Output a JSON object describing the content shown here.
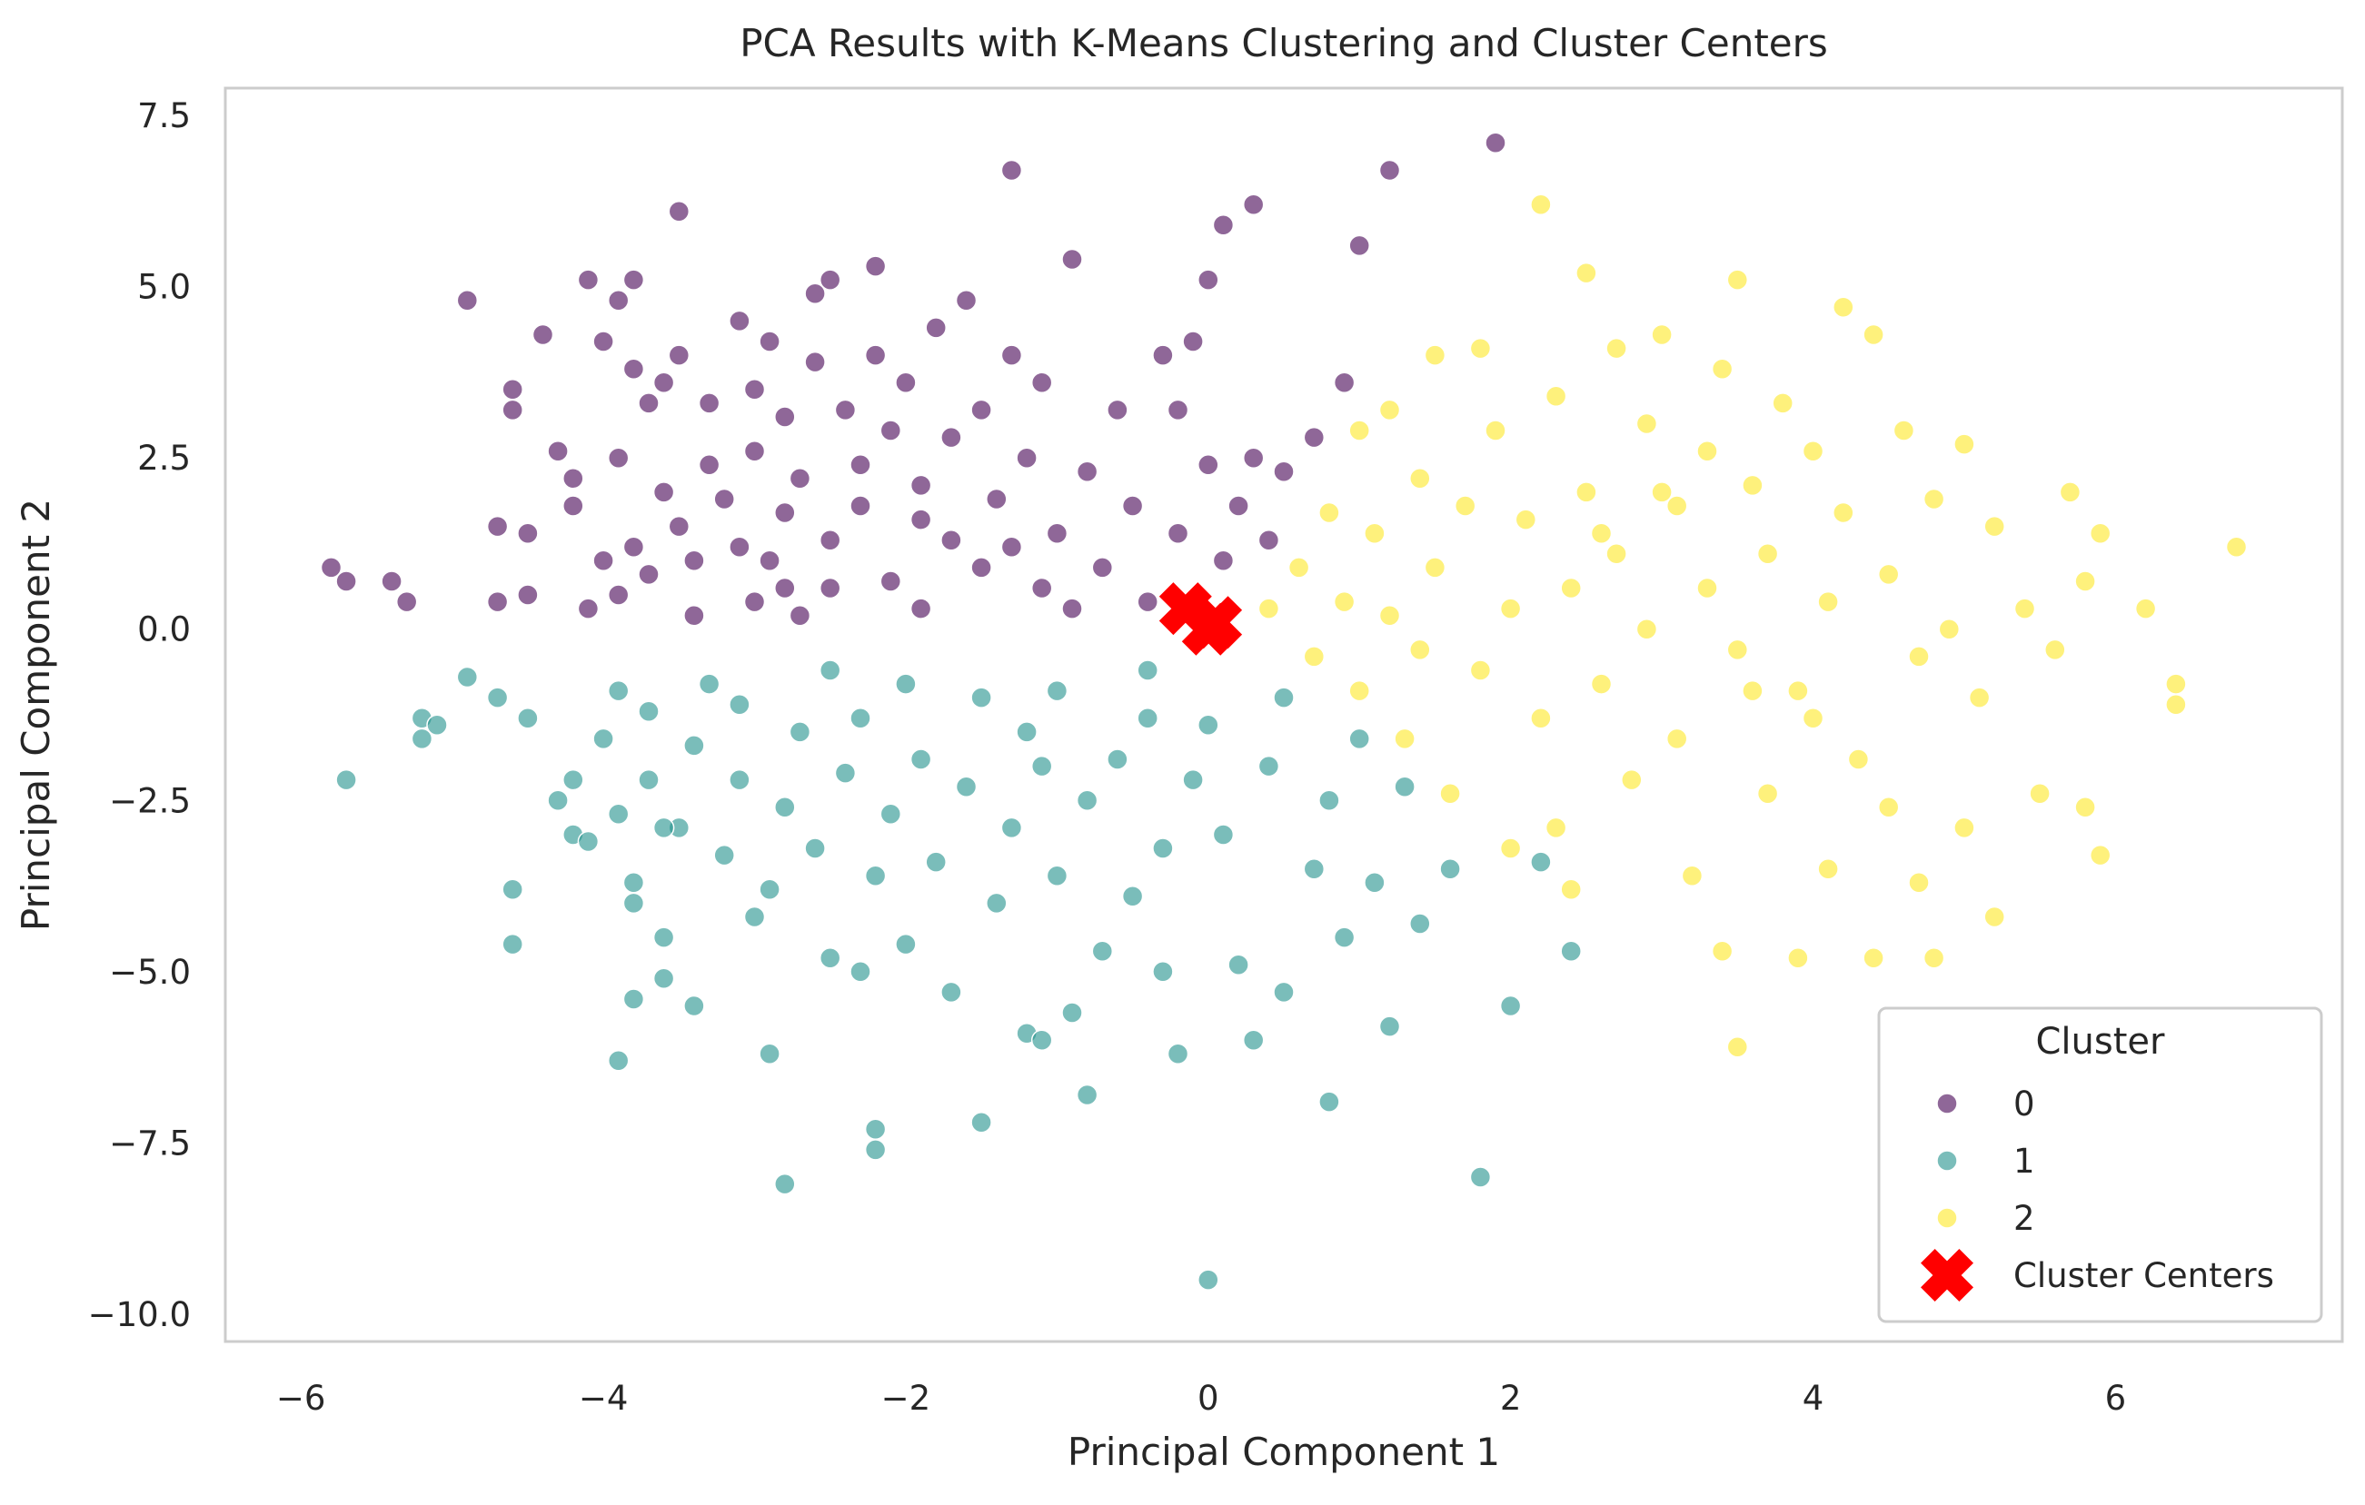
{
  "chart_data": {
    "type": "scatter",
    "title": "PCA Results with K-Means Clustering and Cluster Centers",
    "xlabel": "Principal Component 1",
    "ylabel": "Principal Component 2",
    "xlim": [
      -6.5,
      7.5
    ],
    "ylim": [
      -10.4,
      7.9
    ],
    "xticks": [
      -6,
      -4,
      -2,
      0,
      2,
      4,
      6
    ],
    "xtick_labels": [
      "−6",
      "−4",
      "−2",
      "0",
      "2",
      "4",
      "6"
    ],
    "yticks": [
      -10.0,
      -7.5,
      -5.0,
      -2.5,
      0.0,
      2.5,
      5.0,
      7.5
    ],
    "ytick_labels": [
      "−10.0",
      "−7.5",
      "−5.0",
      "−2.5",
      "0.0",
      "2.5",
      "5.0",
      "7.5"
    ],
    "grid": false,
    "legend": {
      "title": "Cluster",
      "position": "lower-right",
      "entries": [
        "0",
        "1",
        "2",
        "Cluster Centers"
      ]
    },
    "colors": {
      "0": "#440154",
      "1": "#21918c",
      "2": "#fde725",
      "centers": "#ff0000"
    },
    "series": [
      {
        "name": "0",
        "points": [
          [
            -5.8,
            0.9
          ],
          [
            -5.7,
            0.7
          ],
          [
            -5.4,
            0.7
          ],
          [
            -5.3,
            0.4
          ],
          [
            -4.9,
            4.8
          ],
          [
            -4.7,
            1.5
          ],
          [
            -4.7,
            0.4
          ],
          [
            -4.6,
            3.5
          ],
          [
            -4.6,
            3.2
          ],
          [
            -4.5,
            1.4
          ],
          [
            -4.5,
            0.5
          ],
          [
            -4.4,
            4.3
          ],
          [
            -4.3,
            2.6
          ],
          [
            -4.2,
            2.2
          ],
          [
            -4.2,
            1.8
          ],
          [
            -4.1,
            5.1
          ],
          [
            -4.1,
            0.3
          ],
          [
            -4.0,
            4.2
          ],
          [
            -4.0,
            1.0
          ],
          [
            -3.9,
            4.8
          ],
          [
            -3.9,
            2.5
          ],
          [
            -3.9,
            0.5
          ],
          [
            -3.8,
            5.1
          ],
          [
            -3.8,
            3.8
          ],
          [
            -3.8,
            1.2
          ],
          [
            -3.7,
            3.3
          ],
          [
            -3.7,
            0.8
          ],
          [
            -3.6,
            3.6
          ],
          [
            -3.6,
            2.0
          ],
          [
            -3.5,
            6.1
          ],
          [
            -3.5,
            4.0
          ],
          [
            -3.5,
            1.5
          ],
          [
            -3.4,
            0.2
          ],
          [
            -3.3,
            3.3
          ],
          [
            -3.3,
            2.4
          ],
          [
            -3.2,
            1.9
          ],
          [
            -3.1,
            4.5
          ],
          [
            -3.1,
            1.2
          ],
          [
            -3.0,
            3.5
          ],
          [
            -3.0,
            2.6
          ],
          [
            -3.0,
            0.4
          ],
          [
            -2.9,
            4.2
          ],
          [
            -2.9,
            1.0
          ],
          [
            -2.8,
            3.1
          ],
          [
            -2.8,
            1.7
          ],
          [
            -2.7,
            2.2
          ],
          [
            -2.7,
            0.2
          ],
          [
            -2.6,
            3.9
          ],
          [
            -2.6,
            4.9
          ],
          [
            -2.5,
            1.3
          ],
          [
            -2.5,
            0.6
          ],
          [
            -2.4,
            3.2
          ],
          [
            -2.3,
            2.4
          ],
          [
            -2.3,
            1.8
          ],
          [
            -2.2,
            5.3
          ],
          [
            -2.2,
            4.0
          ],
          [
            -2.1,
            2.9
          ],
          [
            -2.1,
            0.7
          ],
          [
            -2.0,
            3.6
          ],
          [
            -1.9,
            2.1
          ],
          [
            -1.9,
            0.3
          ],
          [
            -1.8,
            4.4
          ],
          [
            -1.7,
            2.8
          ],
          [
            -1.7,
            1.3
          ],
          [
            -1.6,
            4.8
          ],
          [
            -1.5,
            3.2
          ],
          [
            -1.5,
            0.9
          ],
          [
            -1.4,
            1.9
          ],
          [
            -1.3,
            6.7
          ],
          [
            -1.3,
            4.0
          ],
          [
            -1.2,
            2.5
          ],
          [
            -1.1,
            0.6
          ],
          [
            -1.1,
            3.6
          ],
          [
            -1.0,
            1.4
          ],
          [
            -0.9,
            5.4
          ],
          [
            -0.8,
            2.3
          ],
          [
            -0.7,
            0.9
          ],
          [
            -0.6,
            3.2
          ],
          [
            -0.5,
            1.8
          ],
          [
            -0.4,
            0.4
          ],
          [
            -0.3,
            4.0
          ],
          [
            -0.2,
            3.2
          ],
          [
            -0.2,
            1.4
          ],
          [
            -0.1,
            4.2
          ],
          [
            0.0,
            5.1
          ],
          [
            0.0,
            2.4
          ],
          [
            0.1,
            5.9
          ],
          [
            0.1,
            1.0
          ],
          [
            0.2,
            1.8
          ],
          [
            0.3,
            2.5
          ],
          [
            0.3,
            6.2
          ],
          [
            0.4,
            1.3
          ],
          [
            0.5,
            2.3
          ],
          [
            0.7,
            2.8
          ],
          [
            0.9,
            3.6
          ],
          [
            1.0,
            5.6
          ],
          [
            1.2,
            6.7
          ],
          [
            1.9,
            7.1
          ],
          [
            -2.5,
            5.1
          ],
          [
            -1.9,
            1.6
          ],
          [
            -3.4,
            1.0
          ],
          [
            -2.8,
            0.6
          ],
          [
            -0.9,
            0.3
          ],
          [
            -1.3,
            1.2
          ]
        ]
      },
      {
        "name": "1",
        "points": [
          [
            -5.7,
            -2.2
          ],
          [
            -5.2,
            -1.3
          ],
          [
            -5.2,
            -1.6
          ],
          [
            -5.1,
            -1.4
          ],
          [
            -4.9,
            -0.7
          ],
          [
            -4.7,
            -1.0
          ],
          [
            -4.6,
            -3.8
          ],
          [
            -4.6,
            -4.6
          ],
          [
            -4.5,
            -1.3
          ],
          [
            -4.3,
            -2.5
          ],
          [
            -4.2,
            -3.0
          ],
          [
            -4.2,
            -2.2
          ],
          [
            -4.1,
            -3.1
          ],
          [
            -4.0,
            -1.6
          ],
          [
            -3.9,
            -6.3
          ],
          [
            -3.9,
            -2.7
          ],
          [
            -3.9,
            -0.9
          ],
          [
            -3.8,
            -3.7
          ],
          [
            -3.8,
            -5.4
          ],
          [
            -3.8,
            -4.0
          ],
          [
            -3.7,
            -2.2
          ],
          [
            -3.7,
            -1.2
          ],
          [
            -3.6,
            -5.1
          ],
          [
            -3.6,
            -4.5
          ],
          [
            -3.5,
            -2.9
          ],
          [
            -3.4,
            -5.5
          ],
          [
            -3.4,
            -1.7
          ],
          [
            -3.3,
            -0.8
          ],
          [
            -3.2,
            -3.3
          ],
          [
            -3.1,
            -2.2
          ],
          [
            -3.1,
            -1.1
          ],
          [
            -3.0,
            -4.2
          ],
          [
            -2.9,
            -6.2
          ],
          [
            -2.8,
            -2.6
          ],
          [
            -2.8,
            -8.1
          ],
          [
            -2.7,
            -1.5
          ],
          [
            -2.6,
            -3.2
          ],
          [
            -2.5,
            -0.6
          ],
          [
            -2.5,
            -4.8
          ],
          [
            -2.4,
            -2.1
          ],
          [
            -2.3,
            -5.0
          ],
          [
            -2.3,
            -1.3
          ],
          [
            -2.2,
            -3.6
          ],
          [
            -2.2,
            -7.6
          ],
          [
            -2.2,
            -7.3
          ],
          [
            -2.1,
            -2.7
          ],
          [
            -2.0,
            -0.8
          ],
          [
            -2.0,
            -4.6
          ],
          [
            -1.9,
            -1.9
          ],
          [
            -1.8,
            -3.4
          ],
          [
            -1.7,
            -5.3
          ],
          [
            -1.6,
            -2.3
          ],
          [
            -1.5,
            -1.0
          ],
          [
            -1.5,
            -7.2
          ],
          [
            -1.4,
            -4.0
          ],
          [
            -1.3,
            -2.9
          ],
          [
            -1.2,
            -5.9
          ],
          [
            -1.2,
            -1.5
          ],
          [
            -1.1,
            -6.0
          ],
          [
            -1.0,
            -3.6
          ],
          [
            -1.0,
            -0.9
          ],
          [
            -0.9,
            -5.6
          ],
          [
            -0.8,
            -2.5
          ],
          [
            -0.8,
            -6.8
          ],
          [
            -0.7,
            -4.7
          ],
          [
            -0.6,
            -1.9
          ],
          [
            -0.5,
            -3.9
          ],
          [
            -0.4,
            -0.6
          ],
          [
            -0.3,
            -5.0
          ],
          [
            -0.3,
            -3.2
          ],
          [
            -0.2,
            -6.2
          ],
          [
            -0.1,
            -2.2
          ],
          [
            0.0,
            -9.5
          ],
          [
            0.0,
            -1.4
          ],
          [
            0.1,
            -3.0
          ],
          [
            0.2,
            -4.9
          ],
          [
            0.3,
            -6.0
          ],
          [
            0.4,
            -2.0
          ],
          [
            0.5,
            -5.3
          ],
          [
            0.5,
            -1.0
          ],
          [
            0.7,
            -3.5
          ],
          [
            0.8,
            -6.9
          ],
          [
            0.8,
            -2.5
          ],
          [
            0.9,
            -4.5
          ],
          [
            1.0,
            -1.6
          ],
          [
            1.1,
            -3.7
          ],
          [
            1.2,
            -5.8
          ],
          [
            1.3,
            -2.3
          ],
          [
            1.4,
            -4.3
          ],
          [
            1.6,
            -3.5
          ],
          [
            1.8,
            -8.0
          ],
          [
            2.0,
            -5.5
          ],
          [
            2.2,
            -3.4
          ],
          [
            2.4,
            -4.7
          ],
          [
            -3.6,
            -2.9
          ],
          [
            -2.9,
            -3.8
          ],
          [
            -1.1,
            -2.0
          ],
          [
            -0.4,
            -1.3
          ]
        ]
      },
      {
        "name": "2",
        "points": [
          [
            0.4,
            0.3
          ],
          [
            0.6,
            0.9
          ],
          [
            0.7,
            -0.4
          ],
          [
            0.8,
            1.7
          ],
          [
            0.9,
            0.4
          ],
          [
            1.0,
            2.9
          ],
          [
            1.0,
            -0.9
          ],
          [
            1.1,
            1.4
          ],
          [
            1.2,
            3.2
          ],
          [
            1.2,
            0.2
          ],
          [
            1.3,
            -1.6
          ],
          [
            1.4,
            2.2
          ],
          [
            1.5,
            4.0
          ],
          [
            1.5,
            0.9
          ],
          [
            1.6,
            -2.4
          ],
          [
            1.7,
            1.8
          ],
          [
            1.8,
            4.1
          ],
          [
            1.8,
            -0.6
          ],
          [
            1.9,
            2.9
          ],
          [
            2.0,
            0.3
          ],
          [
            2.0,
            -3.2
          ],
          [
            2.1,
            1.6
          ],
          [
            2.2,
            6.2
          ],
          [
            2.2,
            -1.3
          ],
          [
            2.3,
            3.4
          ],
          [
            2.4,
            0.6
          ],
          [
            2.4,
            -3.8
          ],
          [
            2.5,
            5.2
          ],
          [
            2.5,
            2.0
          ],
          [
            2.6,
            -0.8
          ],
          [
            2.7,
            4.1
          ],
          [
            2.7,
            1.1
          ],
          [
            2.8,
            -2.2
          ],
          [
            2.9,
            3.0
          ],
          [
            2.9,
            0.0
          ],
          [
            3.0,
            4.3
          ],
          [
            3.1,
            -1.6
          ],
          [
            3.1,
            1.8
          ],
          [
            3.2,
            -3.6
          ],
          [
            3.3,
            2.6
          ],
          [
            3.3,
            0.6
          ],
          [
            3.4,
            -4.7
          ],
          [
            3.4,
            3.8
          ],
          [
            3.5,
            5.1
          ],
          [
            3.5,
            -6.1
          ],
          [
            3.5,
            -0.3
          ],
          [
            3.6,
            2.1
          ],
          [
            3.7,
            -2.4
          ],
          [
            3.7,
            1.1
          ],
          [
            3.8,
            3.3
          ],
          [
            3.9,
            -4.8
          ],
          [
            3.9,
            -0.9
          ],
          [
            4.0,
            2.6
          ],
          [
            4.1,
            0.4
          ],
          [
            4.1,
            -3.5
          ],
          [
            4.2,
            4.7
          ],
          [
            4.2,
            1.7
          ],
          [
            4.3,
            -1.9
          ],
          [
            4.4,
            4.3
          ],
          [
            4.4,
            -4.8
          ],
          [
            4.5,
            0.8
          ],
          [
            4.5,
            -2.6
          ],
          [
            4.6,
            2.9
          ],
          [
            4.7,
            -0.4
          ],
          [
            4.7,
            -3.7
          ],
          [
            4.8,
            1.9
          ],
          [
            4.8,
            -4.8
          ],
          [
            4.9,
            0.0
          ],
          [
            5.0,
            -2.9
          ],
          [
            5.0,
            2.7
          ],
          [
            5.1,
            -1.0
          ],
          [
            5.2,
            1.5
          ],
          [
            5.2,
            -4.2
          ],
          [
            5.4,
            0.3
          ],
          [
            5.5,
            -2.4
          ],
          [
            5.6,
            -0.3
          ],
          [
            5.7,
            2.0
          ],
          [
            5.8,
            -2.6
          ],
          [
            5.8,
            0.7
          ],
          [
            5.9,
            1.4
          ],
          [
            5.9,
            -3.3
          ],
          [
            6.2,
            0.3
          ],
          [
            6.4,
            -0.8
          ],
          [
            6.4,
            -1.1
          ],
          [
            6.8,
            1.2
          ],
          [
            2.6,
            1.4
          ],
          [
            3.6,
            -0.9
          ],
          [
            4.0,
            -1.3
          ],
          [
            1.4,
            -0.3
          ],
          [
            3.0,
            2.0
          ],
          [
            2.3,
            -2.9
          ]
        ]
      }
    ],
    "centers": [
      [
        -0.15,
        0.3
      ],
      [
        0.05,
        0.1
      ],
      [
        0.0,
        0.0
      ]
    ]
  }
}
